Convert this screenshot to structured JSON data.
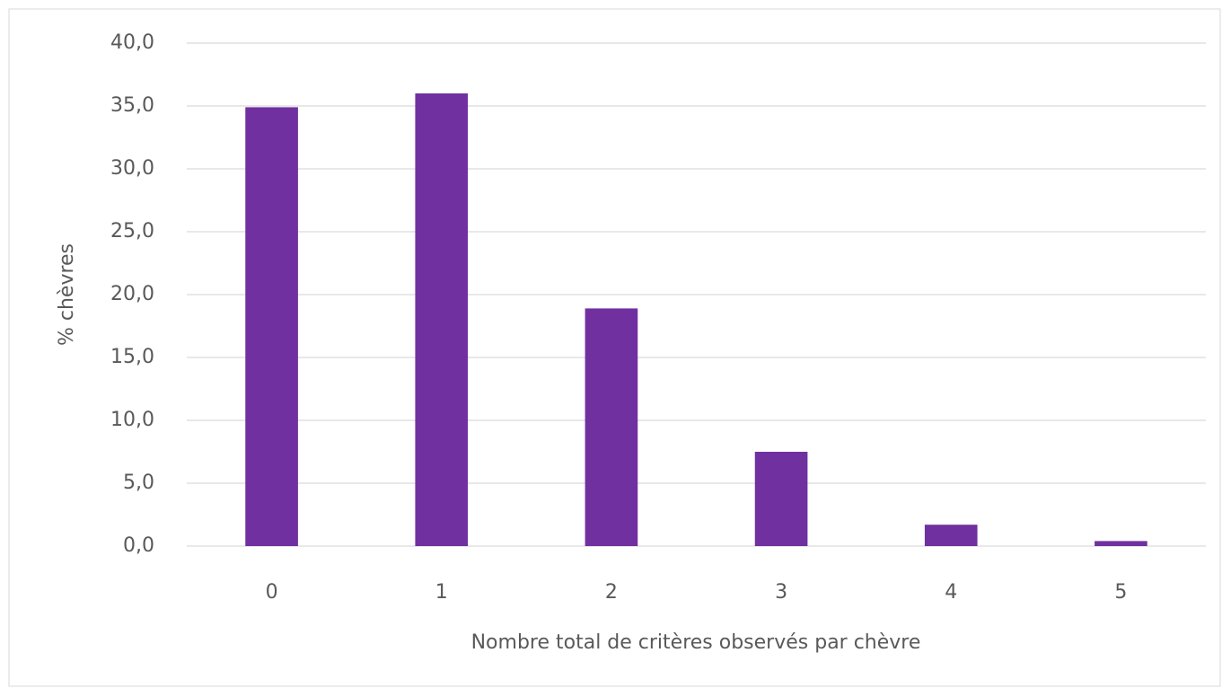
{
  "chart_data": {
    "type": "bar",
    "x_label": "Nombre total de critères observés par chèvre",
    "y_label": "% chèvres",
    "categories": [
      "0",
      "1",
      "2",
      "3",
      "4",
      "5"
    ],
    "values": [
      34.9,
      36.0,
      18.9,
      7.5,
      1.7,
      0.4
    ],
    "color": "#7030a0",
    "ylim": [
      0,
      40
    ],
    "yticks": [
      {
        "value": 0,
        "label": "0,0"
      },
      {
        "value": 5,
        "label": "5,0"
      },
      {
        "value": 10,
        "label": "10,0"
      },
      {
        "value": 15,
        "label": "15,0"
      },
      {
        "value": 20,
        "label": "20,0"
      },
      {
        "value": 25,
        "label": "25,0"
      },
      {
        "value": 30,
        "label": "30,0"
      },
      {
        "value": 35,
        "label": "35,0"
      },
      {
        "value": 40,
        "label": "40,0"
      }
    ],
    "grid": true
  }
}
